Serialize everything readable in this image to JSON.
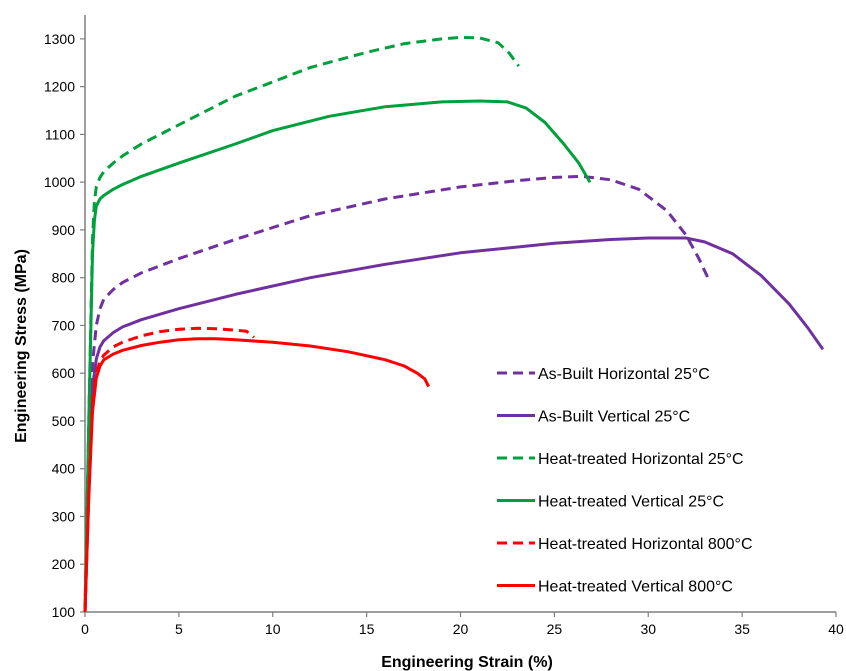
{
  "chart_data": {
    "type": "line",
    "title": "",
    "xlabel": "Engineering Strain (%)",
    "ylabel": "Engineering Stress (MPa)",
    "xlim": [
      0,
      40
    ],
    "ylim": [
      100,
      1350
    ],
    "xticks": [
      0,
      5,
      10,
      15,
      20,
      25,
      30,
      35,
      40
    ],
    "yticks": [
      100,
      200,
      300,
      400,
      500,
      600,
      700,
      800,
      900,
      1000,
      1100,
      1200,
      1300
    ],
    "grid": false,
    "legend_position": "bottom-right",
    "series": [
      {
        "name": "As-Built Horizontal 25°C",
        "color": "#7030A0",
        "dash": "dashed",
        "x": [
          0,
          0.2,
          0.4,
          0.6,
          0.8,
          1,
          1.5,
          2,
          3,
          5,
          8,
          12,
          16,
          20,
          23,
          25,
          26.5,
          28,
          29.5,
          31,
          32,
          32.7,
          33.2
        ],
        "y": [
          100,
          420,
          620,
          700,
          735,
          755,
          775,
          790,
          810,
          840,
          880,
          930,
          965,
          990,
          1003,
          1010,
          1012,
          1005,
          985,
          940,
          890,
          840,
          798
        ]
      },
      {
        "name": "As-Built Vertical 25°C",
        "color": "#7030A0",
        "dash": "solid",
        "x": [
          0,
          0.2,
          0.4,
          0.6,
          0.8,
          1,
          1.5,
          2,
          3,
          5,
          8,
          12,
          16,
          20,
          25,
          28,
          30,
          32,
          33,
          34.5,
          36,
          37.5,
          38.5,
          39.3
        ],
        "y": [
          100,
          380,
          570,
          630,
          655,
          668,
          685,
          697,
          712,
          735,
          765,
          800,
          828,
          852,
          872,
          880,
          883,
          883,
          875,
          850,
          805,
          745,
          695,
          650
        ]
      },
      {
        "name": "Heat-treated Horizontal 25°C",
        "color": "#00A03C",
        "dash": "dashed",
        "x": [
          0,
          0.2,
          0.4,
          0.5,
          0.6,
          0.8,
          1,
          1.5,
          2,
          3,
          5,
          8,
          10,
          12,
          15,
          17,
          19,
          20,
          21,
          22,
          22.6,
          23.1
        ],
        "y": [
          100,
          500,
          880,
          960,
          990,
          1010,
          1022,
          1040,
          1055,
          1080,
          1120,
          1180,
          1210,
          1240,
          1272,
          1290,
          1300,
          1303,
          1302,
          1292,
          1270,
          1243
        ]
      },
      {
        "name": "Heat-treated Vertical 25°C",
        "color": "#00A03C",
        "dash": "solid",
        "x": [
          0,
          0.2,
          0.4,
          0.5,
          0.6,
          0.8,
          1,
          1.5,
          2,
          3,
          5,
          8,
          10,
          13,
          16,
          19,
          21,
          22.5,
          23.5,
          24.5,
          25.5,
          26.3,
          26.9
        ],
        "y": [
          100,
          500,
          850,
          920,
          950,
          965,
          972,
          985,
          995,
          1012,
          1040,
          1080,
          1108,
          1138,
          1158,
          1168,
          1170,
          1168,
          1155,
          1125,
          1080,
          1040,
          1000
        ]
      },
      {
        "name": "Heat-treated Horizontal 800°C",
        "color": "#FF0000",
        "dash": "dashed",
        "x": [
          0,
          0.2,
          0.4,
          0.6,
          0.8,
          1,
          1.5,
          2,
          3,
          4,
          5,
          6,
          7,
          8,
          8.6,
          9
        ],
        "y": [
          100,
          350,
          540,
          600,
          625,
          638,
          655,
          665,
          678,
          687,
          692,
          694,
          693,
          690,
          688,
          675
        ]
      },
      {
        "name": "Heat-treated Vertical 800°C",
        "color": "#FF0000",
        "dash": "solid",
        "x": [
          0,
          0.2,
          0.4,
          0.6,
          0.8,
          1,
          1.5,
          2,
          3,
          4,
          5,
          6,
          7,
          8,
          10,
          12,
          14,
          16,
          17,
          17.7,
          18.1,
          18.3
        ],
        "y": [
          100,
          340,
          520,
          590,
          615,
          628,
          640,
          648,
          658,
          665,
          670,
          672,
          672,
          670,
          665,
          657,
          645,
          628,
          615,
          600,
          588,
          572
        ]
      }
    ]
  }
}
